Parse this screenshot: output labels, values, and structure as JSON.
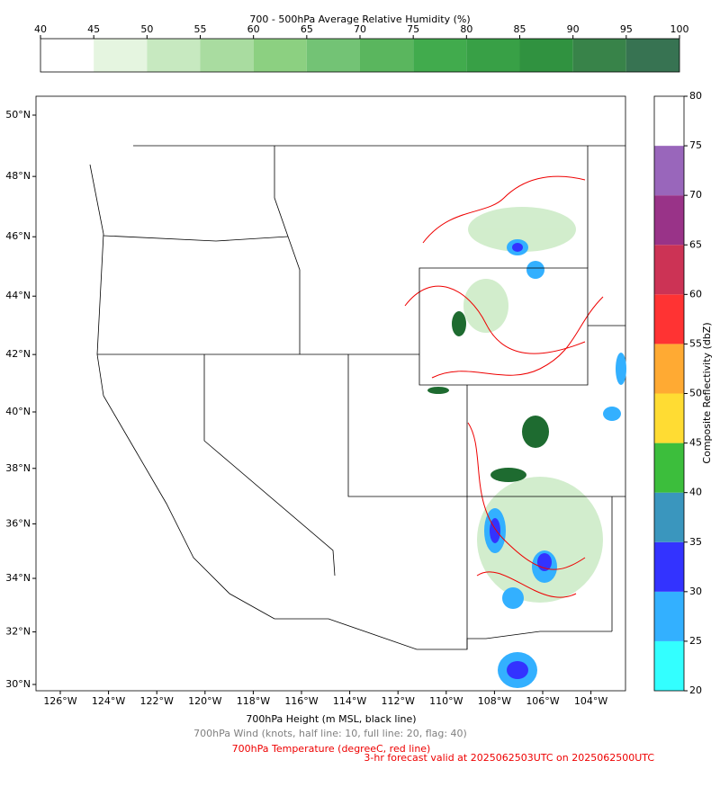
{
  "humidity_colorbar": {
    "title": "700 - 500hPa Average Relative Humidity (%)",
    "ticks": [
      40,
      45,
      50,
      55,
      60,
      65,
      70,
      75,
      80,
      85,
      90,
      95,
      100
    ],
    "colors": [
      "#ffffff",
      "#e5f5e0",
      "#c7e9c0",
      "#a9dca0",
      "#8cd081",
      "#73c375",
      "#5ab65e",
      "#41ab4d",
      "#38a046",
      "#309240",
      "#388349",
      "#377352"
    ]
  },
  "reflectivity_colorbar": {
    "label": "Composite Reflectivity (dbZ)",
    "ticks": [
      20,
      25,
      30,
      35,
      40,
      45,
      50,
      55,
      60,
      65,
      70,
      75,
      80
    ],
    "colors": [
      "#33ffff",
      "#33b0ff",
      "#3333ff",
      "#3a96be",
      "#3cbe3c",
      "#ffdc33",
      "#ffaa33",
      "#ff3333",
      "#cc3355",
      "#993388",
      "#9966bb",
      "#ffffff"
    ]
  },
  "map": {
    "lon_ticks": [
      {
        "value": -126,
        "label": "126°W"
      },
      {
        "value": -124,
        "label": "124°W"
      },
      {
        "value": -122,
        "label": "122°W"
      },
      {
        "value": -120,
        "label": "120°W"
      },
      {
        "value": -118,
        "label": "118°W"
      },
      {
        "value": -116,
        "label": "116°W"
      },
      {
        "value": -114,
        "label": "114°W"
      },
      {
        "value": -112,
        "label": "112°W"
      },
      {
        "value": -110,
        "label": "110°W"
      },
      {
        "value": -108,
        "label": "108°W"
      },
      {
        "value": -106,
        "label": "106°W"
      },
      {
        "value": -104,
        "label": "104°W"
      }
    ],
    "lat_ticks": [
      {
        "value": 30,
        "label": "30°N"
      },
      {
        "value": 32,
        "label": "32°N"
      },
      {
        "value": 34,
        "label": "34°N"
      },
      {
        "value": 36,
        "label": "36°N"
      },
      {
        "value": 38,
        "label": "38°N"
      },
      {
        "value": 40,
        "label": "40°N"
      },
      {
        "value": 42,
        "label": "42°N"
      },
      {
        "value": 44,
        "label": "44°N"
      },
      {
        "value": 46,
        "label": "46°N"
      },
      {
        "value": 48,
        "label": "48°N"
      },
      {
        "value": 50,
        "label": "50°N"
      }
    ]
  },
  "captions": {
    "height": "700hPa Height (m MSL, black line)",
    "wind": "700hPa Wind (knots, half line: 10, full line: 20, flag: 40)",
    "temperature": "700hPa Temperature (degreeC, red line)",
    "forecast": "3-hr forecast valid at 2025062503UTC on 2025062500UTC"
  }
}
